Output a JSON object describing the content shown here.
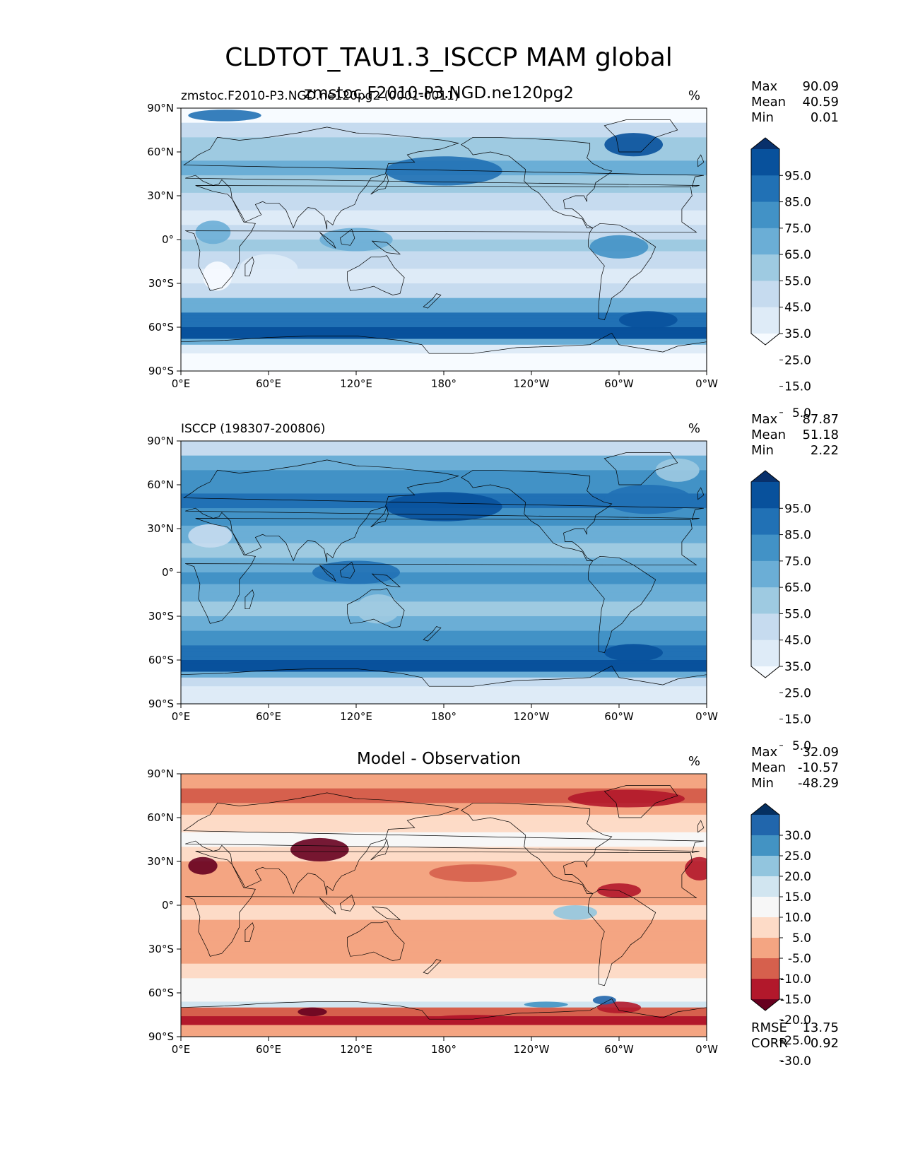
{
  "figure_title": "CLDTOT_TAU1.3_ISCCP MAM global",
  "colors": {
    "blues": [
      "#f7fbff",
      "#deebf7",
      "#c6dbef",
      "#9ecae1",
      "#6baed6",
      "#4292c6",
      "#2171b5",
      "#08519c",
      "#08306b"
    ],
    "diverging": [
      "#67001f",
      "#b2182b",
      "#d6604d",
      "#f4a582",
      "#fddbc7",
      "#f7f7f7",
      "#d1e5f0",
      "#92c5de",
      "#4393c3",
      "#2166ac",
      "#053061"
    ],
    "land_outline": "#000000"
  },
  "chart_data": [
    {
      "type": "heatmap",
      "name": "model",
      "title": "zmstoc.F2010-P3.NGD.ne120pg2",
      "left_title": "zmstoc.F2010-P3.NGD.ne120pg2 (0001-0011)",
      "units": "%",
      "stats": [
        {
          "label": "Max",
          "value": "90.09"
        },
        {
          "label": "Mean",
          "value": "40.59"
        },
        {
          "label": "Min",
          "value": "0.01"
        }
      ],
      "x_ticks": [
        "0°E",
        "60°E",
        "120°E",
        "180°",
        "120°W",
        "60°W",
        "0°W"
      ],
      "y_ticks": [
        "90°N",
        "60°N",
        "30°N",
        "0°",
        "30°S",
        "60°S",
        "90°S"
      ],
      "xlim": [
        0,
        360
      ],
      "ylim": [
        -90,
        90
      ],
      "colorbar": {
        "ticks": [
          "95.0",
          "85.0",
          "75.0",
          "65.0",
          "55.0",
          "45.0",
          "35.0",
          "25.0",
          "15.0",
          "5.0"
        ],
        "extend": "both",
        "cmap": "blues"
      }
    },
    {
      "type": "heatmap",
      "name": "observation",
      "title": "",
      "left_title": "ISCCP (198307-200806)",
      "units": "%",
      "stats": [
        {
          "label": "Max",
          "value": "87.87"
        },
        {
          "label": "Mean",
          "value": "51.18"
        },
        {
          "label": "Min",
          "value": "2.22"
        }
      ],
      "x_ticks": [
        "0°E",
        "60°E",
        "120°E",
        "180°",
        "120°W",
        "60°W",
        "0°W"
      ],
      "y_ticks": [
        "90°N",
        "60°N",
        "30°N",
        "0°",
        "30°S",
        "60°S",
        "90°S"
      ],
      "xlim": [
        0,
        360
      ],
      "ylim": [
        -90,
        90
      ],
      "colorbar": {
        "ticks": [
          "95.0",
          "85.0",
          "75.0",
          "65.0",
          "55.0",
          "45.0",
          "35.0",
          "25.0",
          "15.0",
          "5.0"
        ],
        "extend": "both",
        "cmap": "blues"
      }
    },
    {
      "type": "heatmap",
      "name": "difference",
      "title": "Model - Observation",
      "left_title": "",
      "units": "%",
      "stats": [
        {
          "label": "Max",
          "value": "32.09"
        },
        {
          "label": "Mean",
          "value": "-10.57"
        },
        {
          "label": "Min",
          "value": "-48.29"
        }
      ],
      "metrics": [
        {
          "label": "RMSE",
          "value": "13.75"
        },
        {
          "label": "CORR",
          "value": "0.92"
        }
      ],
      "x_ticks": [
        "0°E",
        "60°E",
        "120°E",
        "180°",
        "120°W",
        "60°W",
        "0°W"
      ],
      "y_ticks": [
        "90°N",
        "60°N",
        "30°N",
        "0°",
        "30°S",
        "60°S",
        "90°S"
      ],
      "xlim": [
        0,
        360
      ],
      "ylim": [
        -90,
        90
      ],
      "colorbar": {
        "ticks": [
          "30.0",
          "25.0",
          "20.0",
          "15.0",
          "10.0",
          "5.0",
          "-5.0",
          "-10.0",
          "-15.0",
          "-20.0",
          "-25.0",
          "-30.0"
        ],
        "extend": "both",
        "cmap": "diverging"
      }
    }
  ]
}
